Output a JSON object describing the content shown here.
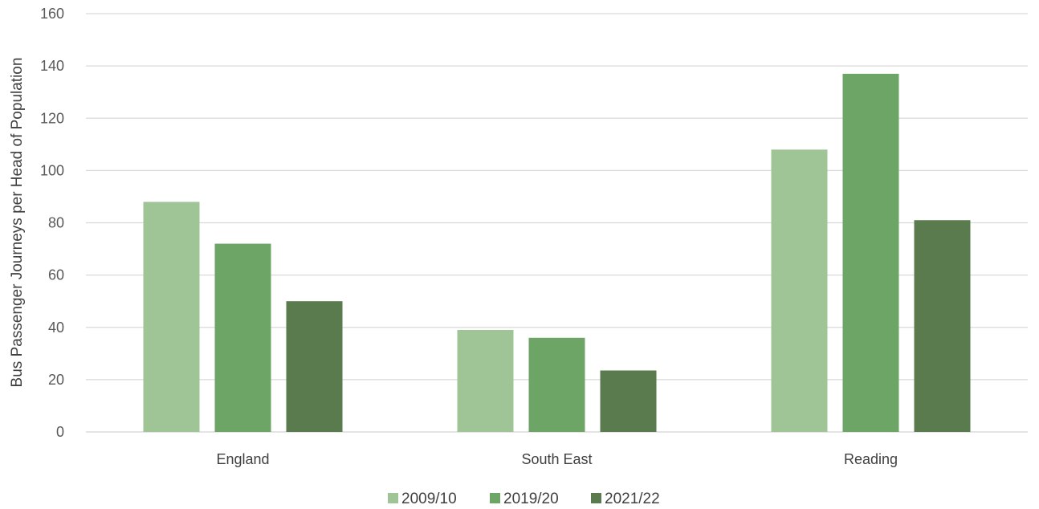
{
  "chart_data": {
    "type": "bar",
    "title": "",
    "xlabel": "",
    "ylabel": "Bus Passenger Journeys per Head of Population",
    "ylim": [
      0,
      160
    ],
    "yticks": [
      0,
      20,
      40,
      60,
      80,
      100,
      120,
      140,
      160
    ],
    "grid": true,
    "legend_position": "bottom",
    "categories": [
      "England",
      "South East",
      "Reading"
    ],
    "series": [
      {
        "name": "2009/10",
        "color": "#9fc597",
        "values": [
          88,
          39,
          108
        ]
      },
      {
        "name": "2019/20",
        "color": "#6ca565",
        "values": [
          72,
          36,
          137
        ]
      },
      {
        "name": "2021/22",
        "color": "#5a7b4e",
        "values": [
          50,
          23.5,
          81
        ]
      }
    ]
  }
}
